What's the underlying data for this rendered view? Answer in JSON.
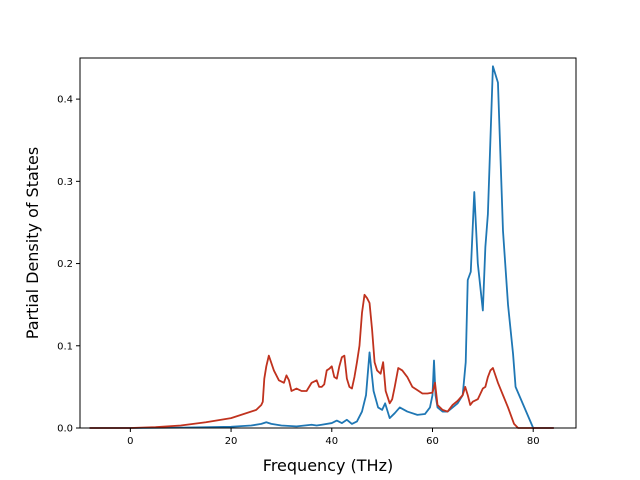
{
  "chart_data": {
    "type": "line",
    "title": "",
    "xlabel": "Frequency (THz)",
    "ylabel": "Partial Density of States",
    "xlim": [
      -10.0,
      88.5
    ],
    "ylim": [
      0,
      0.45
    ],
    "xticks": [
      0,
      20,
      40,
      60,
      80
    ],
    "xtick_labels": [
      "0",
      "20",
      "40",
      "60",
      "80"
    ],
    "yticks": [
      0,
      0.1,
      0.2,
      0.3,
      0.4
    ],
    "ytick_labels": [
      "0.0",
      "0.1",
      "0.2",
      "0.3",
      "0.4"
    ],
    "grid": false,
    "legend": false,
    "series": [
      {
        "color": "#1f77b4",
        "x": [
          -8,
          0,
          10,
          20,
          24,
          26,
          27,
          28,
          30,
          33,
          36,
          37,
          38,
          40,
          41,
          42,
          43,
          44,
          45,
          46,
          46.8,
          47.5,
          48.3,
          49.2,
          50,
          50.6,
          51.5,
          52.5,
          53.5,
          55,
          57,
          58.5,
          59.5,
          60,
          60.3,
          60.6,
          61,
          62,
          63,
          64,
          65,
          66,
          66.6,
          67,
          67.6,
          68.3,
          69,
          70,
          70.5,
          71,
          72,
          73,
          74,
          75,
          76,
          76.5,
          80,
          84
        ],
        "y": [
          0,
          0,
          0.0005,
          0.0015,
          0.003,
          0.005,
          0.007,
          0.005,
          0.003,
          0.002,
          0.004,
          0.003,
          0.004,
          0.006,
          0.009,
          0.006,
          0.01,
          0.005,
          0.008,
          0.02,
          0.04,
          0.092,
          0.045,
          0.025,
          0.022,
          0.03,
          0.012,
          0.018,
          0.025,
          0.02,
          0.016,
          0.017,
          0.025,
          0.04,
          0.082,
          0.04,
          0.025,
          0.02,
          0.02,
          0.025,
          0.03,
          0.04,
          0.08,
          0.18,
          0.19,
          0.287,
          0.2,
          0.143,
          0.22,
          0.26,
          0.44,
          0.42,
          0.24,
          0.15,
          0.09,
          0.05,
          0,
          0
        ]
      },
      {
        "color": "#c0321e",
        "x": [
          -8,
          0,
          5,
          10,
          15,
          20,
          25,
          26,
          26.3,
          26.6,
          27,
          27.5,
          28.5,
          29.5,
          30.5,
          31,
          31.5,
          32,
          33,
          34,
          35,
          36,
          37,
          37.5,
          38,
          38.5,
          39,
          39.5,
          40,
          40.5,
          41,
          41.5,
          42,
          42.5,
          43,
          43.5,
          44,
          44.5,
          45,
          45.5,
          46,
          46.5,
          47,
          47.5,
          48,
          48.5,
          49,
          49.7,
          50.2,
          50.7,
          51.5,
          52,
          52.5,
          53.2,
          54,
          55,
          56,
          57,
          58,
          59,
          60,
          60.5,
          61,
          62,
          63,
          64,
          65,
          66,
          66.5,
          67,
          67.5,
          68,
          69,
          70,
          70.5,
          71,
          71.5,
          72,
          73,
          74,
          75,
          76.2,
          77,
          84
        ],
        "y": [
          0,
          0,
          0.001,
          0.003,
          0.007,
          0.012,
          0.022,
          0.028,
          0.032,
          0.06,
          0.075,
          0.088,
          0.07,
          0.058,
          0.055,
          0.064,
          0.058,
          0.045,
          0.048,
          0.045,
          0.045,
          0.055,
          0.058,
          0.05,
          0.05,
          0.053,
          0.07,
          0.072,
          0.075,
          0.062,
          0.06,
          0.075,
          0.086,
          0.088,
          0.06,
          0.05,
          0.048,
          0.062,
          0.08,
          0.1,
          0.14,
          0.162,
          0.158,
          0.152,
          0.12,
          0.08,
          0.07,
          0.066,
          0.08,
          0.045,
          0.03,
          0.035,
          0.05,
          0.073,
          0.07,
          0.062,
          0.05,
          0.046,
          0.042,
          0.042,
          0.043,
          0.055,
          0.028,
          0.022,
          0.02,
          0.028,
          0.033,
          0.04,
          0.05,
          0.04,
          0.028,
          0.032,
          0.035,
          0.048,
          0.05,
          0.062,
          0.07,
          0.073,
          0.055,
          0.04,
          0.025,
          0.005,
          0,
          0
        ]
      }
    ]
  }
}
